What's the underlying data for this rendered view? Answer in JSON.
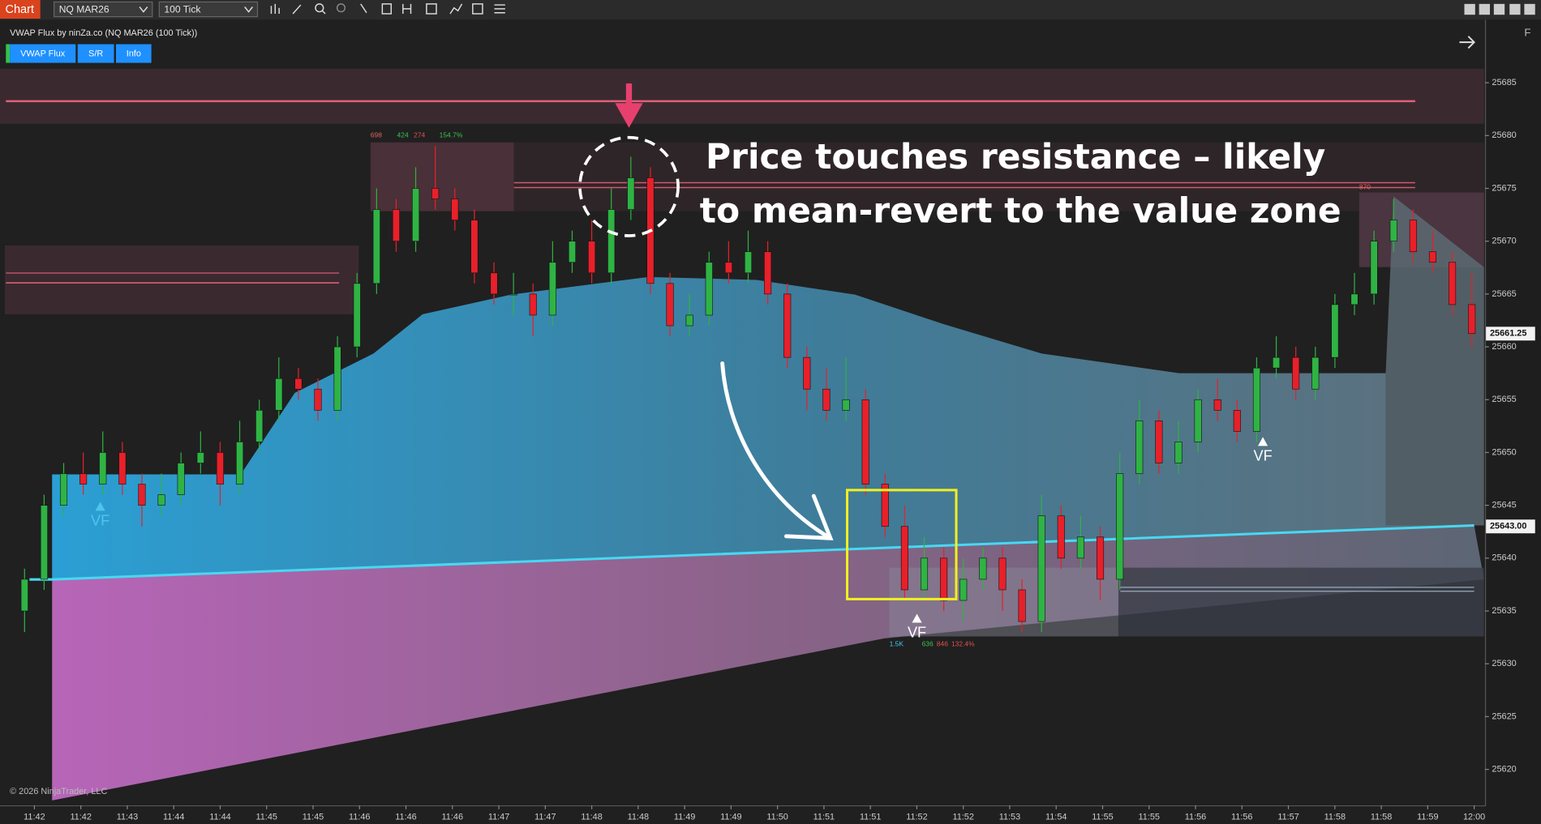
{
  "toolbar": {
    "tab": "Chart",
    "instrument": "NQ MAR26",
    "interval": "100 Tick"
  },
  "indicator": {
    "title": "VWAP Flux by ninZa.co (NQ MAR26 (100 Tick))",
    "buttons": [
      "VWAP Flux",
      "S/R",
      "Info"
    ]
  },
  "annotation": {
    "lines": [
      "Price touches resistance – likely",
      "to mean-revert to the value zone"
    ]
  },
  "chart_data": {
    "type": "candlestick",
    "time_labels": [
      "11:42",
      "11:42",
      "11:43",
      "11:44",
      "11:44",
      "11:45",
      "11:45",
      "11:46",
      "11:46",
      "11:46",
      "11:47",
      "11:47",
      "11:48",
      "11:48",
      "11:49",
      "11:49",
      "11:50",
      "11:51",
      "11:51",
      "11:52",
      "11:52",
      "11:53",
      "11:54",
      "11:55",
      "11:55",
      "11:56",
      "11:56",
      "11:57",
      "11:58",
      "11:58",
      "11:59",
      "12:00"
    ],
    "open": [
      25635,
      25638,
      25645,
      25648,
      25647,
      25650,
      25647,
      25645,
      25646,
      25649,
      25650,
      25647,
      25651,
      25654,
      25657,
      25656,
      25654,
      25660,
      25666,
      25673,
      25670,
      25675,
      25674,
      25672,
      25667,
      25665,
      25665,
      25663,
      25668,
      25670,
      25667,
      25673,
      25676,
      25666,
      25662,
      25663,
      25668,
      25667,
      25669,
      25665,
      25659,
      25656,
      25654,
      25655,
      25647,
      25643,
      25637,
      25640,
      25636,
      25638,
      25640,
      25637,
      25634,
      25644,
      25640,
      25642,
      25638,
      25648,
      25653,
      25649,
      25651,
      25655,
      25654,
      25652,
      25658,
      25659,
      25656,
      25659,
      25664,
      25665,
      25670,
      25672,
      25669,
      25668,
      25664
    ],
    "high": [
      25639,
      25646,
      25649,
      25650,
      25652,
      25651,
      25648,
      25648,
      25650,
      25652,
      25651,
      25653,
      25655,
      25659,
      25658,
      25657,
      25661,
      25667,
      25675,
      25674,
      25677,
      25679,
      25675,
      25673,
      25668,
      25667,
      25666,
      25670,
      25671,
      25672,
      25675,
      25678,
      25677,
      25667,
      25665,
      25669,
      25670,
      25671,
      25670,
      25666,
      25660,
      25658,
      25659,
      25656,
      25648,
      25645,
      25642,
      25641,
      25640,
      25641,
      25641,
      25638,
      25646,
      25645,
      25644,
      25643,
      25650,
      25655,
      25654,
      25653,
      25656,
      25657,
      25655,
      25659,
      25661,
      25660,
      25660,
      25665,
      25667,
      25671,
      25674,
      25673,
      25671,
      25669,
      25667
    ],
    "low": [
      25633,
      25637,
      25644,
      25646,
      25646,
      25646,
      25643,
      25644,
      25645,
      25648,
      25645,
      25646,
      25650,
      25653,
      25655,
      25653,
      25653,
      25659,
      25665,
      25669,
      25669,
      25673,
      25671,
      25666,
      25664,
      25663,
      25661,
      25662,
      25667,
      25666,
      25666,
      25672,
      25665,
      25661,
      25661,
      25662,
      25666,
      25666,
      25664,
      25658,
      25654,
      25653,
      25653,
      25646,
      25642,
      25636,
      25636,
      25635,
      25634,
      25637,
      25635,
      25633,
      25633,
      25639,
      25639,
      25636,
      25637,
      25647,
      25648,
      25648,
      25650,
      25653,
      25651,
      25651,
      25657,
      25655,
      25655,
      25658,
      25663,
      25664,
      25669,
      25668,
      25667,
      25663,
      25660
    ],
    "close": [
      25638,
      25645,
      25648,
      25647,
      25650,
      25647,
      25645,
      25646,
      25649,
      25650,
      25647,
      25651,
      25654,
      25657,
      25656,
      25654,
      25660,
      25666,
      25673,
      25670,
      25675,
      25674,
      25672,
      25667,
      25665,
      25665,
      25663,
      25668,
      25670,
      25667,
      25673,
      25676,
      25666,
      25662,
      25663,
      25668,
      25667,
      25669,
      25665,
      25659,
      25656,
      25654,
      25655,
      25647,
      25643,
      25637,
      25640,
      25636,
      25638,
      25640,
      25637,
      25634,
      25644,
      25640,
      25642,
      25638,
      25648,
      25653,
      25649,
      25651,
      25655,
      25654,
      25652,
      25658,
      25659,
      25656,
      25659,
      25664,
      25665,
      25670,
      25672,
      25669,
      25668,
      25664,
      25661.25
    ],
    "ylim": [
      25616.6,
      25690.6
    ],
    "yticks": [
      25620,
      25625,
      25630,
      25635,
      25640,
      25645,
      25650,
      25655,
      25660,
      25665,
      25670,
      25675,
      25680,
      25685
    ],
    "price_labels": [
      {
        "value": 25661.25,
        "label": "25661.25"
      },
      {
        "value": 25643,
        "label": "25643.00"
      }
    ],
    "colors": {
      "up": "#2fb344",
      "down": "#e8202a"
    }
  },
  "stats": [
    {
      "text": "698",
      "color": "#e06060"
    },
    {
      "text": "424",
      "color": "#3cc050"
    },
    {
      "text": "274",
      "color": "#e05050"
    },
    {
      "text": "154.7%",
      "color": "#3cc050"
    },
    {
      "text": "870",
      "color": "#e06060"
    },
    {
      "text": "1.5K",
      "color": "#40c8f0"
    },
    {
      "text": "636",
      "color": "#3cc050"
    },
    {
      "text": "846",
      "color": "#e05050"
    },
    {
      "text": "132.4%",
      "color": "#e05050"
    }
  ],
  "markers": [
    "VF",
    "VF",
    "VF"
  ],
  "copyright": "© 2026 NinjaTrader, LLC"
}
